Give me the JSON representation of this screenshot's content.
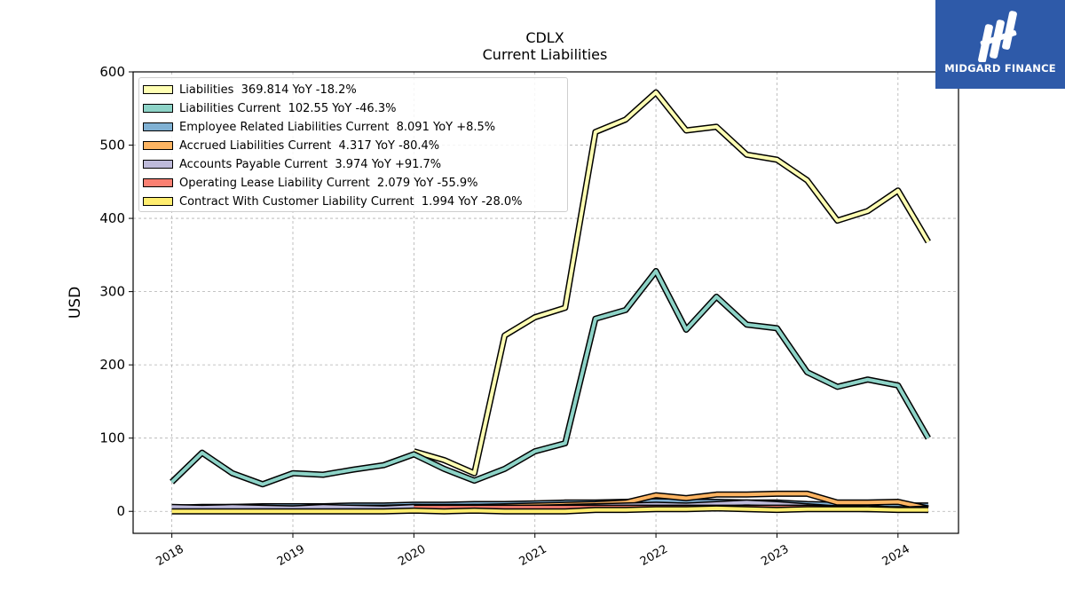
{
  "logo": {
    "text": "MIDGARD FINANCE",
    "background": "#2e5aa9"
  },
  "chart_data": {
    "type": "line",
    "title": "CDLX",
    "subtitle": "Current  Liabilities",
    "xlabel": "",
    "ylabel": "USD",
    "ylim": [
      -30,
      600
    ],
    "yticks": [
      0,
      100,
      200,
      300,
      400,
      500,
      600
    ],
    "xlim": [
      2017.68,
      2024.5
    ],
    "xticks": [
      2018,
      2019,
      2020,
      2021,
      2022,
      2023,
      2024
    ],
    "xtick_labels": [
      "2018",
      "2019",
      "2020",
      "2021",
      "2022",
      "2023",
      "2024"
    ],
    "grid": true,
    "legend_position": "top-left",
    "series": [
      {
        "name": "Liabilities",
        "legend": "Liabilities  369.814 YoY -18.2%",
        "color": "#ffffb3",
        "x": [
          2020.0,
          2020.25,
          2020.5,
          2020.75,
          2021.0,
          2021.25,
          2021.5,
          2021.75,
          2022.0,
          2022.25,
          2022.5,
          2022.75,
          2023.0,
          2023.25,
          2023.5,
          2023.75,
          2024.0,
          2024.25
        ],
        "values": [
          82,
          70,
          52,
          240,
          265,
          278,
          518,
          535,
          572,
          520,
          525,
          487,
          480,
          452,
          397,
          410,
          438,
          368
        ]
      },
      {
        "name": "Liabilities Current",
        "legend": "Liabilities Current  102.55 YoY -46.3%",
        "color": "#8dd3c7",
        "x": [
          2018.0,
          2018.25,
          2018.5,
          2018.75,
          2019.0,
          2019.25,
          2019.5,
          2019.75,
          2020.0,
          2020.25,
          2020.5,
          2020.75,
          2021.0,
          2021.25,
          2021.5,
          2021.75,
          2022.0,
          2022.25,
          2022.5,
          2022.75,
          2023.0,
          2023.25,
          2023.5,
          2023.75,
          2024.0,
          2024.25
        ],
        "values": [
          40,
          80,
          52,
          37,
          52,
          50,
          57,
          63,
          78,
          58,
          42,
          58,
          82,
          93,
          263,
          275,
          328,
          248,
          293,
          255,
          250,
          190,
          170,
          180,
          172,
          100
        ]
      },
      {
        "name": "Employee Related Liabilities Current",
        "legend": "Employee Related Liabilities Current  8.091 YoY +8.5%",
        "color": "#80b1d3",
        "x": [
          2018.0,
          2018.25,
          2018.5,
          2018.75,
          2019.0,
          2019.25,
          2019.5,
          2019.75,
          2020.0,
          2020.25,
          2020.5,
          2020.75,
          2021.0,
          2021.25,
          2021.5,
          2021.75,
          2022.0,
          2022.25,
          2022.5,
          2022.75,
          2023.0,
          2023.25,
          2023.5,
          2023.75,
          2024.0,
          2024.25
        ],
        "values": [
          5,
          6,
          6,
          7,
          7,
          7,
          8,
          8,
          9,
          9,
          10,
          10,
          11,
          12,
          12,
          13,
          14,
          13,
          13,
          12,
          12,
          10,
          9,
          8,
          8,
          8
        ]
      },
      {
        "name": "Accrued Liabilities Current",
        "legend": "Accrued Liabilities Current  4.317 YoY -80.4%",
        "color": "#fdb462",
        "x": [
          2018.0,
          2018.25,
          2018.5,
          2018.75,
          2019.0,
          2019.25,
          2019.5,
          2019.75,
          2020.0,
          2020.25,
          2020.5,
          2020.75,
          2021.0,
          2021.25,
          2021.5,
          2021.75,
          2022.0,
          2022.25,
          2022.5,
          2022.75,
          2023.0,
          2023.25,
          2023.5,
          2023.75,
          2024.0,
          2024.25
        ],
        "values": [
          3,
          3,
          4,
          4,
          4,
          4,
          5,
          5,
          6,
          6,
          6,
          7,
          8,
          9,
          10,
          12,
          22,
          18,
          23,
          23,
          24,
          24,
          12,
          12,
          13,
          4
        ]
      },
      {
        "name": "Accounts Payable Current",
        "legend": "Accounts Payable Current  3.974 YoY +91.7%",
        "color": "#bebada",
        "x": [
          2018.0,
          2018.25,
          2018.5,
          2018.75,
          2019.0,
          2019.25,
          2019.5,
          2019.75,
          2020.0,
          2020.25,
          2020.5,
          2020.75,
          2021.0,
          2021.25,
          2021.5,
          2021.75,
          2022.0,
          2022.25,
          2022.5,
          2022.75,
          2023.0,
          2023.25,
          2023.5,
          2023.75,
          2024.0,
          2024.25
        ],
        "values": [
          6,
          5,
          6,
          5,
          4,
          6,
          5,
          4,
          6,
          5,
          6,
          4,
          5,
          6,
          7,
          8,
          9,
          8,
          10,
          12,
          10,
          7,
          4,
          5,
          2,
          4
        ]
      },
      {
        "name": "Operating Lease Liability Current",
        "legend": "Operating Lease Liability Current  2.079 YoY -55.9%",
        "color": "#fb8072",
        "x": [
          2020.0,
          2020.25,
          2020.5,
          2020.75,
          2021.0,
          2021.25,
          2021.5,
          2021.75,
          2022.0,
          2022.25,
          2022.5,
          2022.75,
          2023.0,
          2023.25,
          2023.5,
          2023.75,
          2024.0,
          2024.25
        ],
        "values": [
          5,
          5,
          5,
          5,
          5,
          5,
          5,
          5,
          5,
          5,
          5,
          5,
          5,
          5,
          4,
          3,
          3,
          2
        ]
      },
      {
        "name": "Contract With Customer Liability Current",
        "legend": "Contract With Customer Liability Current  1.994 YoY -28.0%",
        "color": "#ffed6f",
        "x": [
          2018.0,
          2018.25,
          2018.5,
          2018.75,
          2019.0,
          2019.25,
          2019.5,
          2019.75,
          2020.0,
          2020.25,
          2020.5,
          2020.75,
          2021.0,
          2021.25,
          2021.5,
          2021.75,
          2022.0,
          2022.25,
          2022.5,
          2022.75,
          2023.0,
          2023.25,
          2023.5,
          2023.75,
          2024.0,
          2024.25
        ],
        "values": [
          0,
          0,
          0,
          0,
          0,
          0,
          0,
          0,
          1,
          0,
          1,
          0,
          0,
          0,
          2,
          2,
          3,
          3,
          4,
          3,
          2,
          3,
          3,
          3,
          2,
          2
        ]
      }
    ]
  }
}
